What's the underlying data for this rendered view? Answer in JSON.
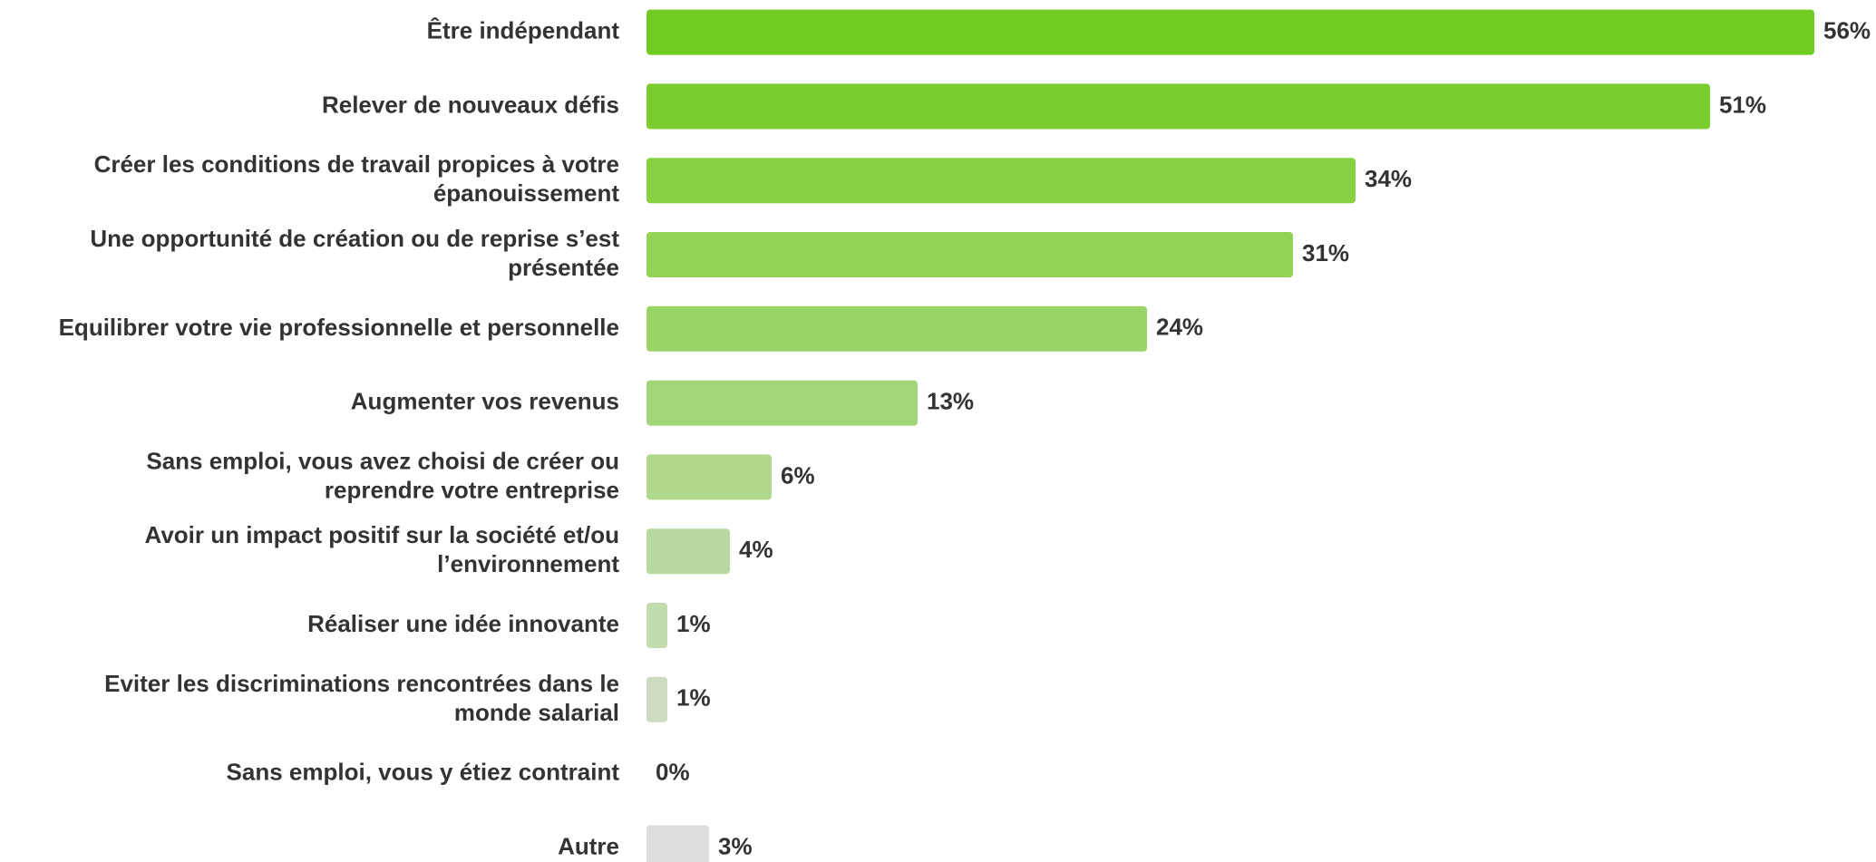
{
  "chart_data": {
    "type": "barh",
    "categories": [
      "Être indépendant",
      "Relever de nouveaux défis",
      "Créer les conditions de travail propices à votre\népanouissement",
      "Une opportunité de création ou de reprise s’est\nprésentée",
      "Equilibrer votre vie professionnelle et personnelle",
      "Augmenter vos revenus",
      "Sans emploi, vous avez choisi de créer ou\nreprendre votre entreprise",
      "Avoir un impact positif sur la société et/ou\nl’environnement",
      "Réaliser une idée innovante",
      "Eviter les discriminations rencontrées dans le\nmonde salarial",
      "Sans emploi, vous y étiez contraint",
      "Autre"
    ],
    "values": [
      56,
      51,
      34,
      31,
      24,
      13,
      6,
      4,
      1,
      1,
      0,
      3
    ],
    "value_labels": [
      "56%",
      "51%",
      "34%",
      "31%",
      "24%",
      "13%",
      "6%",
      "4%",
      "1%",
      "1%",
      "0%",
      "3%"
    ],
    "colors": [
      "#72cb23",
      "#7acd2e",
      "#86d042",
      "#91d257",
      "#98d466",
      "#a2d577",
      "#b0d88c",
      "#b8daa0",
      "#c2dcae",
      "#cddcc0",
      "#cddcc0",
      "#dddddd"
    ],
    "xlim": [
      0,
      56
    ]
  }
}
